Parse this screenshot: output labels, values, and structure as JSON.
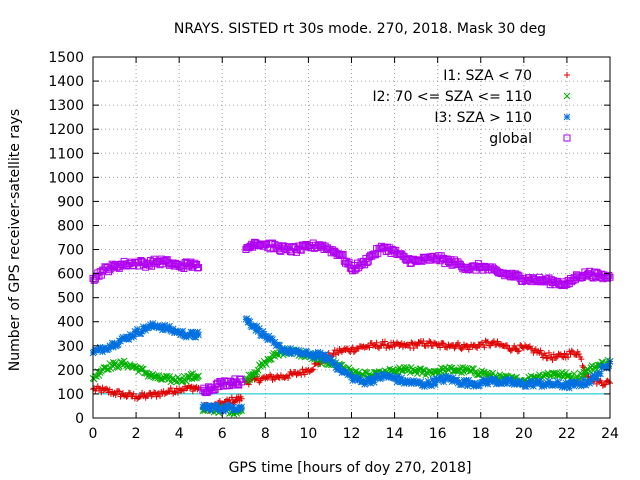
{
  "chart_data": {
    "type": "scatter",
    "title": "NRAYS. SISTED rt 30s mode. 270, 2018. Mask 30 deg",
    "xlabel": "GPS time [hours of doy 270, 2018]",
    "ylabel": "Number of GPS receiver-satellite rays",
    "xlim": [
      0,
      24
    ],
    "ylim": [
      0,
      1500
    ],
    "xticks": [
      "0",
      "2",
      "4",
      "6",
      "8",
      "10",
      "12",
      "14",
      "16",
      "18",
      "20",
      "22",
      "24"
    ],
    "yticks": [
      "0",
      "100",
      "200",
      "300",
      "400",
      "500",
      "600",
      "700",
      "800",
      "900",
      "1000",
      "1100",
      "1200",
      "1300",
      "1400",
      "1500"
    ],
    "grid": true,
    "legend_position": "top-right",
    "reference_line": {
      "y": 100,
      "color": "#00c8c8"
    },
    "series": [
      {
        "name": "I1: SZA < 70",
        "marker": "+",
        "color": "#e00000",
        "x": [
          0,
          0.5,
          1,
          1.5,
          2,
          2.5,
          3,
          3.5,
          4,
          4.5,
          4.9,
          5.1,
          5.5,
          6,
          6.5,
          6.9,
          7.1,
          7.5,
          8,
          8.5,
          9,
          9.5,
          10,
          10.5,
          11,
          11.5,
          12,
          12.5,
          13,
          13.5,
          14,
          14.5,
          15,
          15.5,
          16,
          16.5,
          17,
          17.5,
          18,
          18.5,
          19,
          19.5,
          20,
          20.5,
          21,
          21.5,
          22,
          22.5,
          23,
          23.5,
          24
        ],
        "y": [
          120,
          115,
          105,
          95,
          90,
          92,
          100,
          110,
          120,
          125,
          125,
          40,
          45,
          60,
          75,
          80,
          150,
          160,
          165,
          170,
          175,
          185,
          200,
          230,
          260,
          280,
          285,
          295,
          300,
          305,
          300,
          300,
          305,
          310,
          300,
          305,
          300,
          295,
          305,
          310,
          300,
          290,
          290,
          280,
          260,
          250,
          265,
          275,
          170,
          150,
          145
        ]
      },
      {
        "name": "I2: 70 <= SZA <= 110",
        "marker": "x",
        "color": "#00b000",
        "x": [
          0,
          0.5,
          1,
          1.5,
          2,
          2.5,
          3,
          3.5,
          4,
          4.5,
          4.9,
          5.1,
          5.5,
          6,
          6.5,
          6.9,
          7.1,
          7.5,
          8,
          8.5,
          9,
          9.5,
          10,
          10.5,
          11,
          11.5,
          12,
          12.5,
          13,
          13.5,
          14,
          14.5,
          15,
          15.5,
          16,
          16.5,
          17,
          17.5,
          18,
          18.5,
          19,
          19.5,
          20,
          20.5,
          21,
          21.5,
          22,
          22.5,
          23,
          23.5,
          24
        ],
        "y": [
          165,
          210,
          220,
          225,
          210,
          185,
          165,
          160,
          160,
          170,
          175,
          30,
          35,
          35,
          30,
          30,
          160,
          190,
          230,
          265,
          280,
          270,
          260,
          240,
          230,
          220,
          190,
          180,
          175,
          185,
          195,
          200,
          195,
          190,
          195,
          200,
          200,
          195,
          190,
          175,
          165,
          160,
          155,
          170,
          180,
          185,
          175,
          170,
          200,
          220,
          235
        ]
      },
      {
        "name": "I3: SZA > 110",
        "marker": "*",
        "color": "#0070e0",
        "x": [
          0,
          0.5,
          1,
          1.5,
          2,
          2.5,
          3,
          3.5,
          4,
          4.5,
          4.9,
          5.1,
          5.5,
          6,
          6.5,
          6.9,
          7.1,
          7.5,
          8,
          8.5,
          9,
          9.5,
          10,
          10.5,
          11,
          11.5,
          12,
          12.5,
          13,
          13.5,
          14,
          14.5,
          15,
          15.5,
          16,
          16.5,
          17,
          17.5,
          18,
          18.5,
          19,
          19.5,
          20,
          20.5,
          21,
          21.5,
          22,
          22.5,
          23,
          23.5,
          24
        ],
        "y": [
          270,
          290,
          310,
          330,
          355,
          375,
          385,
          370,
          355,
          345,
          345,
          45,
          45,
          40,
          45,
          45,
          410,
          380,
          340,
          300,
          280,
          270,
          265,
          260,
          245,
          200,
          170,
          150,
          160,
          175,
          165,
          150,
          145,
          140,
          155,
          165,
          150,
          145,
          145,
          155,
          150,
          145,
          140,
          145,
          140,
          140,
          135,
          140,
          150,
          185,
          235
        ]
      },
      {
        "name": "global",
        "marker": "square",
        "color": "#b000f0",
        "x": [
          0,
          0.5,
          1,
          1.5,
          2,
          2.5,
          3,
          3.5,
          4,
          4.5,
          4.9,
          5.1,
          5.5,
          6,
          6.5,
          6.9,
          7.1,
          7.5,
          8,
          8.5,
          9,
          9.5,
          10,
          10.5,
          11,
          11.5,
          12,
          12.5,
          13,
          13.5,
          14,
          14.5,
          15,
          15.5,
          16,
          16.5,
          17,
          17.5,
          18,
          18.5,
          19,
          19.5,
          20,
          20.5,
          21,
          21.5,
          22,
          22.5,
          23,
          23.5,
          24
        ],
        "y": [
          580,
          615,
          630,
          640,
          645,
          640,
          650,
          645,
          630,
          640,
          625,
          115,
          125,
          145,
          150,
          150,
          700,
          730,
          720,
          710,
          700,
          700,
          710,
          720,
          700,
          680,
          620,
          640,
          680,
          710,
          690,
          660,
          650,
          660,
          665,
          650,
          640,
          620,
          630,
          615,
          600,
          590,
          580,
          575,
          570,
          565,
          555,
          590,
          600,
          590,
          585
        ]
      }
    ]
  }
}
